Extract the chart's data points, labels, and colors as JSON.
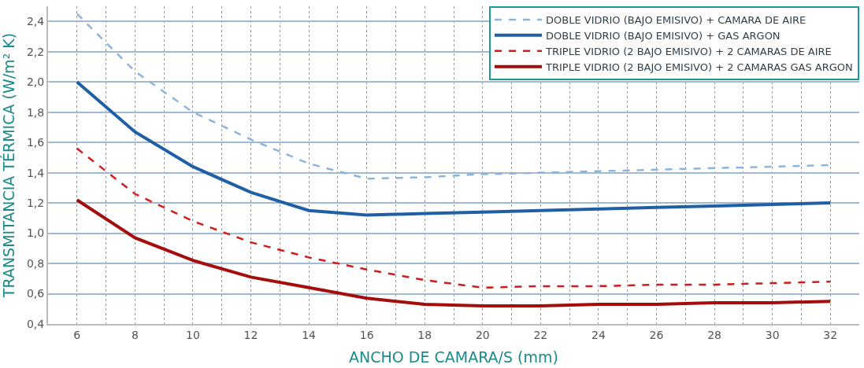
{
  "chart_data": {
    "type": "line",
    "xlabel": "ANCHO DE CAMARA/S (mm)",
    "ylabel": "TRANSMITANCIA TÉRMICA (W/m² K)",
    "x": [
      6,
      8,
      10,
      12,
      14,
      16,
      18,
      20,
      22,
      24,
      26,
      28,
      30,
      32
    ],
    "series": [
      {
        "name": "DOBLE VIDRIO (BAJO EMISIVO) + CAMARA DE AIRE",
        "color": "#8fb4d9",
        "line_style": "dashed",
        "values": [
          2.45,
          2.07,
          1.8,
          1.62,
          1.46,
          1.36,
          1.37,
          1.39,
          1.4,
          1.41,
          1.42,
          1.43,
          1.44,
          1.45
        ]
      },
      {
        "name": "DOBLE VIDRIO (BAJO EMISIVO) + GAS ARGON",
        "color": "#1f5fa6",
        "line_style": "solid",
        "values": [
          2.0,
          1.67,
          1.44,
          1.27,
          1.15,
          1.12,
          1.13,
          1.14,
          1.15,
          1.16,
          1.17,
          1.18,
          1.19,
          1.2
        ]
      },
      {
        "name": "TRIPLE VIDRIO (2 BAJO EMISIVO) + 2 CAMARAS DE AIRE",
        "color": "#d01c1c",
        "line_style": "dashed",
        "values": [
          1.56,
          1.26,
          1.08,
          0.94,
          0.84,
          0.76,
          0.69,
          0.64,
          0.65,
          0.65,
          0.66,
          0.66,
          0.67,
          0.68
        ]
      },
      {
        "name": "TRIPLE VIDRIO (2 BAJO EMISIVO) + 2 CAMARAS GAS ARGON",
        "color": "#a50d0d",
        "line_style": "solid",
        "values": [
          1.22,
          0.97,
          0.82,
          0.71,
          0.64,
          0.57,
          0.53,
          0.52,
          0.52,
          0.53,
          0.53,
          0.54,
          0.54,
          0.55
        ]
      }
    ],
    "xlim": [
      5,
      33
    ],
    "xticks": [
      6,
      8,
      10,
      12,
      14,
      16,
      18,
      20,
      22,
      24,
      26,
      28,
      30,
      32
    ],
    "ylim": [
      0.4,
      2.5
    ],
    "yticks": [
      {
        "value": 0.4,
        "label": "0,4"
      },
      {
        "value": 0.6,
        "label": "0,6"
      },
      {
        "value": 0.8,
        "label": "0,8"
      },
      {
        "value": 1.0,
        "label": "1,0"
      },
      {
        "value": 1.2,
        "label": "1,2"
      },
      {
        "value": 1.4,
        "label": "1,4"
      },
      {
        "value": 1.6,
        "label": "1,6"
      },
      {
        "value": 1.8,
        "label": "1,8"
      },
      {
        "value": 2.0,
        "label": "2,0"
      },
      {
        "value": 2.2,
        "label": "2,2"
      },
      {
        "value": 2.4,
        "label": "2,4"
      }
    ],
    "grid": true,
    "legend": "top right",
    "marker": "none"
  }
}
